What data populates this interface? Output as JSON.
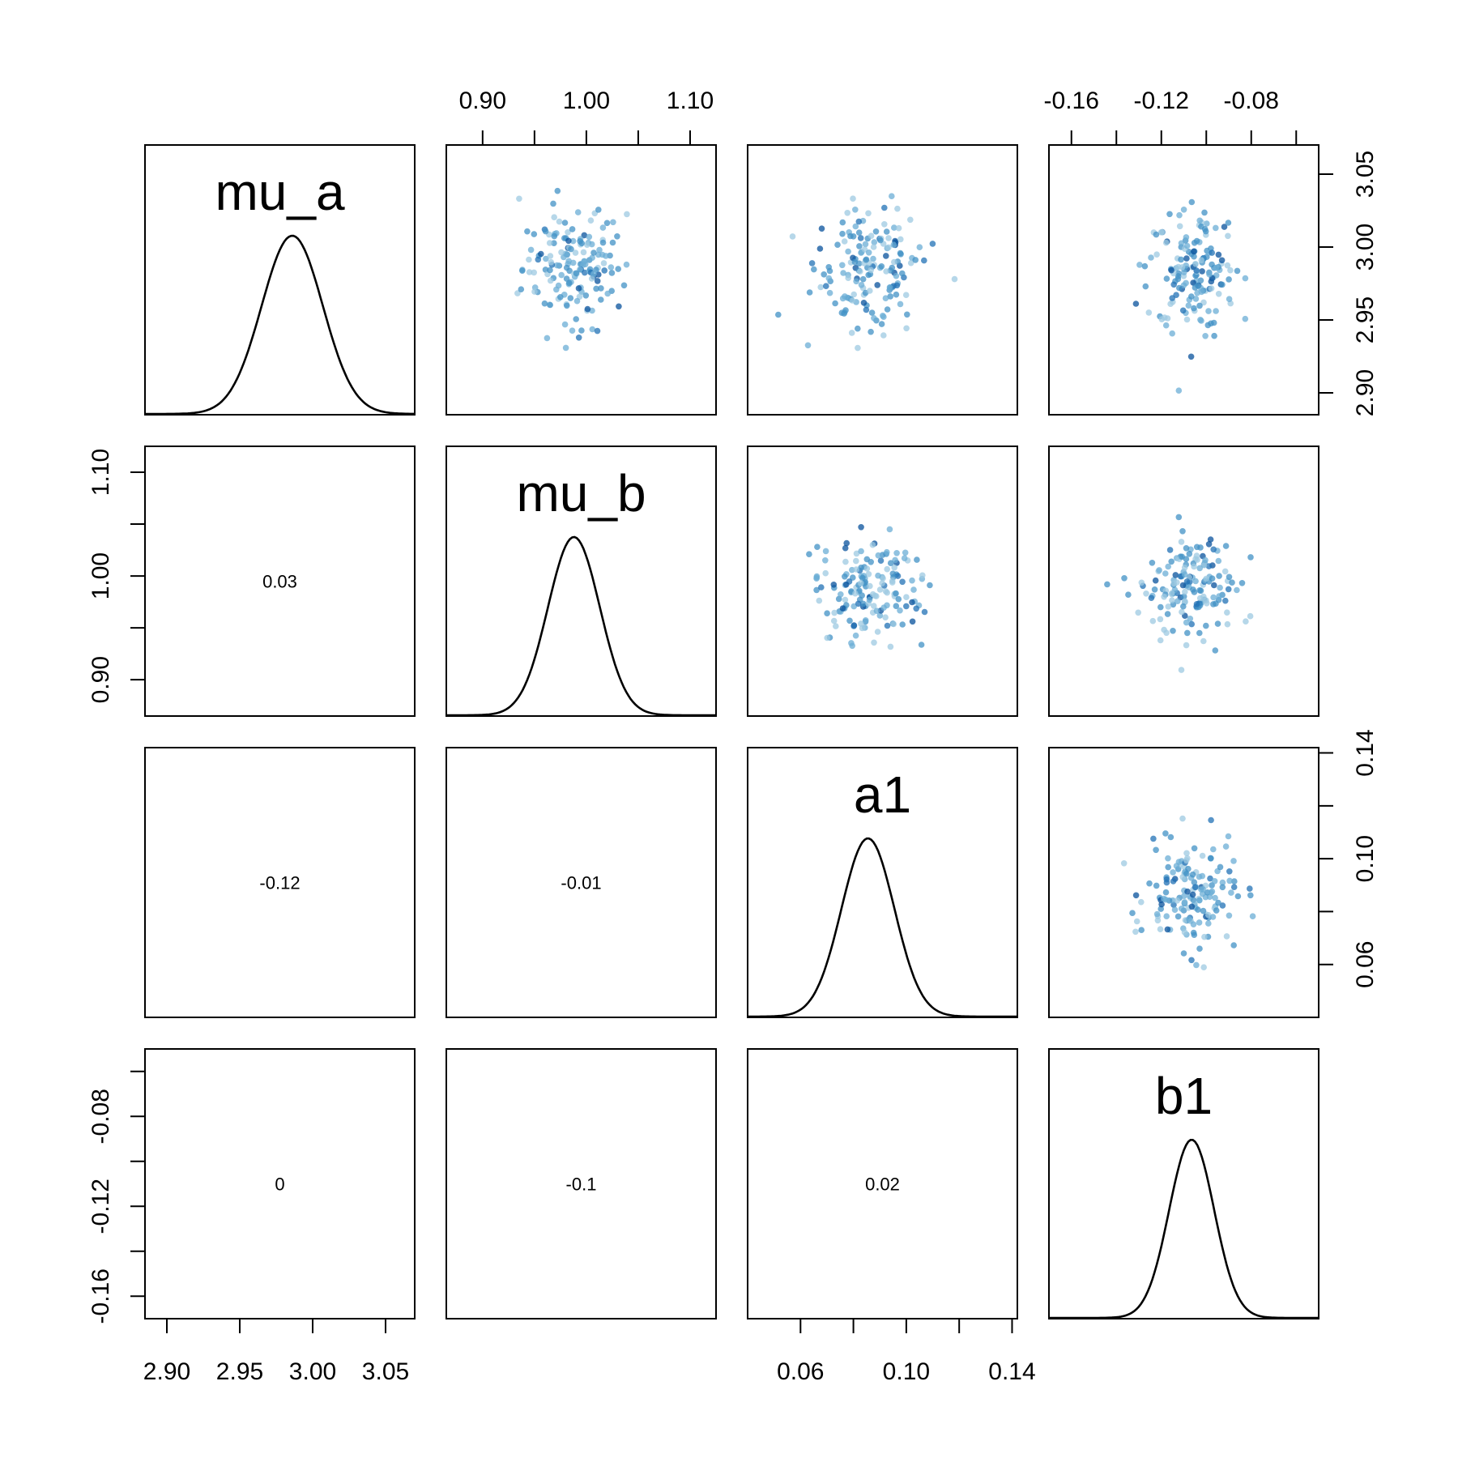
{
  "chart_data": {
    "type": "scatter",
    "variables": [
      {
        "name": "mu_a",
        "range": [
          2.885,
          3.07
        ],
        "ticks": [
          "2.90",
          "2.95",
          "3.00",
          "3.05"
        ],
        "tick_values": [
          2.9,
          2.95,
          3.0,
          3.05
        ],
        "density_mean": 2.986,
        "density_sd": 0.021
      },
      {
        "name": "mu_b",
        "range": [
          0.865,
          1.125
        ],
        "ticks": [
          "0.90",
          "1.00",
          "1.10"
        ],
        "tick_values": [
          0.9,
          1.0,
          1.1
        ],
        "minor_ticks": [
          0.95,
          1.05
        ],
        "density_mean": 0.988,
        "density_sd": 0.025
      },
      {
        "name": "a1",
        "range": [
          0.04,
          0.142
        ],
        "ticks": [
          "0.06",
          "0.10",
          "0.14"
        ],
        "tick_values": [
          0.06,
          0.1,
          0.14
        ],
        "minor_ticks": [
          0.08,
          0.12
        ],
        "density_mean": 0.0855,
        "density_sd": 0.01
      },
      {
        "name": "b1",
        "range": [
          -0.17,
          -0.05
        ],
        "ticks": [
          "-0.16",
          "-0.12",
          "-0.08"
        ],
        "tick_values": [
          -0.16,
          -0.12,
          -0.08
        ],
        "minor_ticks": [
          -0.14,
          -0.1,
          -0.06
        ],
        "density_mean": -0.1065,
        "density_sd": 0.01
      }
    ],
    "correlations": [
      {
        "row": 1,
        "col": 0,
        "label": "0.03"
      },
      {
        "row": 2,
        "col": 0,
        "label": "-0.12"
      },
      {
        "row": 2,
        "col": 1,
        "label": "-0.01"
      },
      {
        "row": 3,
        "col": 0,
        "label": "0"
      },
      {
        "row": 3,
        "col": 1,
        "label": "-0.1"
      },
      {
        "row": 3,
        "col": 2,
        "label": "0.02"
      }
    ],
    "scatter_samples": 160,
    "point_colors": [
      "#9ecae1",
      "#6baed6",
      "#4292c6",
      "#2171b5",
      "#08519c"
    ],
    "grid": false,
    "legend": "none",
    "title": "",
    "axes": {
      "top": [
        1,
        3
      ],
      "bottom": [
        0,
        2
      ],
      "left": [
        1,
        3
      ],
      "right": [
        0,
        2
      ]
    }
  }
}
